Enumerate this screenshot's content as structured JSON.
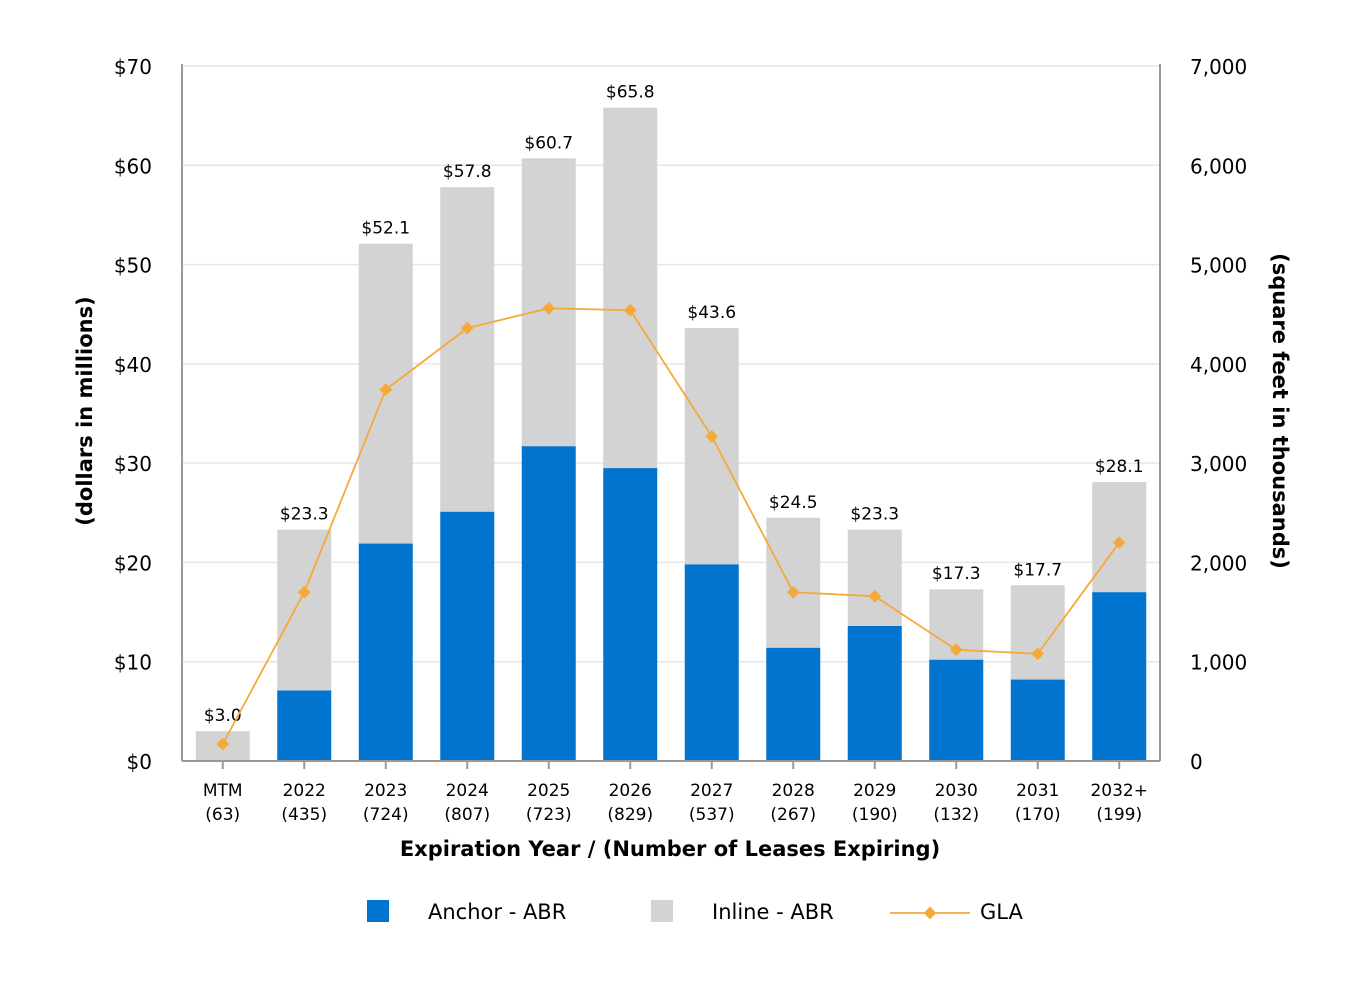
{
  "chart_data": {
    "type": "bar",
    "stacked": true,
    "xlabel": "Expiration Year / (Number of Leases Expiring)",
    "ylabel": "(dollars in millions)",
    "y2label": "(square feet in thousands)",
    "ylim": [
      0,
      70
    ],
    "y2lim": [
      0,
      7000
    ],
    "yticks": [
      "$0",
      "$10",
      "$20",
      "$30",
      "$40",
      "$50",
      "$60",
      "$70"
    ],
    "y2ticks": [
      "0",
      "1,000",
      "2,000",
      "3,000",
      "4,000",
      "5,000",
      "6,000",
      "7,000"
    ],
    "grid": true,
    "legend_position": "bottom",
    "categories": [
      "MTM",
      "2022",
      "2023",
      "2024",
      "2025",
      "2026",
      "2027",
      "2028",
      "2029",
      "2030",
      "2031",
      "2032+"
    ],
    "lease_counts": [
      "(63)",
      "(435)",
      "(724)",
      "(807)",
      "(723)",
      "(829)",
      "(537)",
      "(267)",
      "(190)",
      "(132)",
      "(170)",
      "(199)"
    ],
    "totals": [
      3.0,
      23.3,
      52.1,
      57.8,
      60.7,
      65.8,
      43.6,
      24.5,
      23.3,
      17.3,
      17.7,
      28.1
    ],
    "total_labels": [
      "$3.0",
      "$23.3",
      "$52.1",
      "$57.8",
      "$60.7",
      "$65.8",
      "$43.6",
      "$24.5",
      "$23.3",
      "$17.3",
      "$17.7",
      "$28.1"
    ],
    "series": [
      {
        "name": "Anchor - ABR",
        "type": "bar",
        "color": "#0074CE",
        "values": [
          0,
          7.1,
          21.9,
          25.1,
          31.7,
          29.5,
          19.8,
          11.4,
          13.6,
          10.2,
          8.2,
          17.0
        ]
      },
      {
        "name": "Inline - ABR",
        "type": "bar",
        "color": "#D3D3D3",
        "values": [
          3.0,
          16.2,
          30.2,
          32.7,
          29.0,
          36.3,
          23.8,
          13.1,
          9.7,
          7.1,
          9.5,
          11.1
        ]
      },
      {
        "name": "GLA",
        "type": "line",
        "axis": "right",
        "color": "#F5A93A",
        "values": [
          170,
          1700,
          3740,
          4360,
          4560,
          4540,
          3270,
          1700,
          1660,
          1120,
          1080,
          2200
        ]
      }
    ]
  }
}
